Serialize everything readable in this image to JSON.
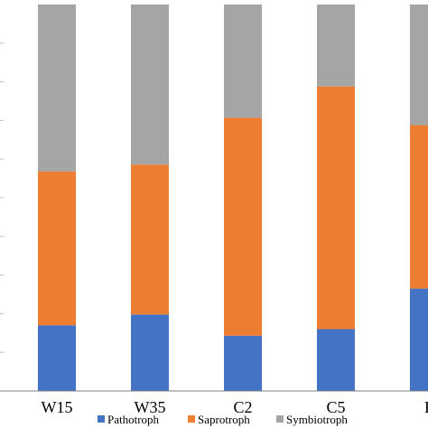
{
  "chart_data": {
    "type": "bar",
    "stacked": true,
    "normalized": true,
    "categories": [
      "W15",
      "W35",
      "C2",
      "C5",
      "F"
    ],
    "series": [
      {
        "name": "Pathotroph",
        "color": "#4472c4",
        "values": [
          0.17,
          0.198,
          0.143,
          0.16,
          0.265
        ]
      },
      {
        "name": "Saprotroph",
        "color": "#ed7d31",
        "values": [
          0.398,
          0.388,
          0.564,
          0.628,
          0.423
        ]
      },
      {
        "name": "Symbiotroph",
        "color": "#a5a5a5",
        "values": [
          0.432,
          0.414,
          0.293,
          0.212,
          0.312
        ]
      }
    ],
    "ylim": [
      0,
      1
    ],
    "ytick_count": 10,
    "legend_position": "bottom",
    "grid": false,
    "axis_color": "#7f7f7f"
  }
}
